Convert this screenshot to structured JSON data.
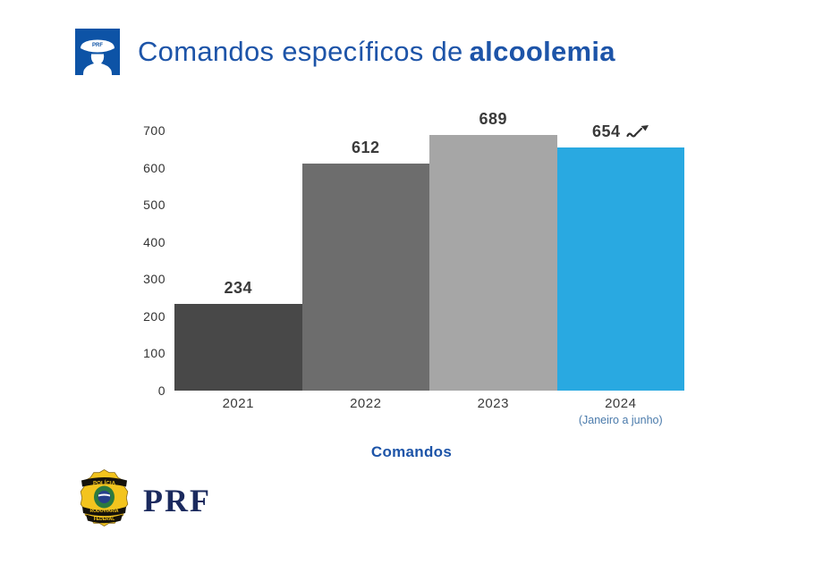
{
  "header": {
    "icon_text": "PRF",
    "title_regular": "Comandos específicos de",
    "title_bold": "alcoolemia"
  },
  "chart_data": {
    "type": "bar",
    "title": "Comandos específicos de alcoolemia",
    "categories": [
      "2021",
      "2022",
      "2023",
      "2024"
    ],
    "values": [
      234,
      612,
      689,
      654
    ],
    "bar_colors": [
      "#484848",
      "#6d6d6d",
      "#a6a6a6",
      "#29a9e1"
    ],
    "category_sublabels": [
      "",
      "",
      "",
      "(Janeiro a junho)"
    ],
    "trend_marker_category": "2024",
    "xlabel": "Comandos",
    "ylabel": "",
    "ylim": [
      0,
      700
    ],
    "yticks": [
      700,
      600,
      500,
      400,
      300,
      200,
      100,
      0
    ],
    "grid": false,
    "legend": "none"
  },
  "footer": {
    "badge_top": "POLÍCIA",
    "badge_middle": "RODOVIÁRIA",
    "badge_bottom": "FEDERAL",
    "brand": "PRF"
  },
  "colors": {
    "title_blue": "#1d54a8",
    "sublabel_blue": "#4a7aab",
    "value_label": "#3a3a3a",
    "axis_text": "#333333",
    "bar_2021": "#484848",
    "bar_2022": "#6d6d6d",
    "bar_2023": "#a6a6a6",
    "bar_2024": "#29a9e1",
    "brand_navy": "#1b2a5e",
    "badge_gold": "#f3c41e",
    "icon_blue": "#0d53a6"
  }
}
